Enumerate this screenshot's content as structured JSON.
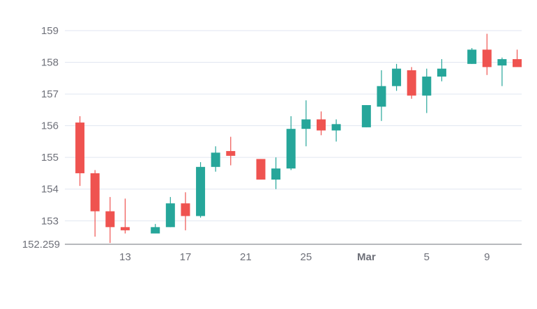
{
  "chart_data": {
    "type": "candlestick",
    "ylim": [
      152.259,
      159
    ],
    "y_ticks": [
      "159",
      "158",
      "157",
      "156",
      "155",
      "154",
      "153"
    ],
    "y_min_label": "152.259",
    "x_ticks": [
      {
        "label": "13",
        "day": 13,
        "bold": false
      },
      {
        "label": "17",
        "day": 17,
        "bold": false
      },
      {
        "label": "21",
        "day": 21,
        "bold": false
      },
      {
        "label": "25",
        "day": 25,
        "bold": false
      },
      {
        "label": "Mar",
        "day": 29,
        "bold": true
      },
      {
        "label": "5",
        "day": 33,
        "bold": false
      },
      {
        "label": "9",
        "day": 37,
        "bold": false
      }
    ],
    "x_range_days": [
      9,
      39.3
    ],
    "grid": true,
    "colors": {
      "up": "#26a69a",
      "down": "#ef5350",
      "grid": "#e0e6f1",
      "axis": "#6e7079"
    },
    "candles": [
      {
        "day": 10,
        "open": 156.1,
        "high": 156.3,
        "low": 154.1,
        "close": 154.5
      },
      {
        "day": 11,
        "open": 154.5,
        "high": 154.6,
        "low": 152.5,
        "close": 153.3
      },
      {
        "day": 12,
        "open": 153.3,
        "high": 153.75,
        "low": 152.3,
        "close": 152.8
      },
      {
        "day": 13,
        "open": 152.8,
        "high": 153.7,
        "low": 152.6,
        "close": 152.7
      },
      {
        "day": 15,
        "open": 152.6,
        "high": 152.9,
        "low": 152.6,
        "close": 152.8
      },
      {
        "day": 16,
        "open": 152.8,
        "high": 153.75,
        "low": 152.8,
        "close": 153.55
      },
      {
        "day": 17,
        "open": 153.55,
        "high": 153.9,
        "low": 152.7,
        "close": 153.15
      },
      {
        "day": 18,
        "open": 153.15,
        "high": 154.85,
        "low": 153.1,
        "close": 154.7
      },
      {
        "day": 19,
        "open": 154.7,
        "high": 155.35,
        "low": 154.55,
        "close": 155.15
      },
      {
        "day": 20,
        "open": 155.2,
        "high": 155.65,
        "low": 154.75,
        "close": 155.05
      },
      {
        "day": 22,
        "open": 154.95,
        "high": 154.95,
        "low": 154.3,
        "close": 154.3
      },
      {
        "day": 23,
        "open": 154.3,
        "high": 155.0,
        "low": 154.0,
        "close": 154.65
      },
      {
        "day": 24,
        "open": 154.65,
        "high": 156.3,
        "low": 154.6,
        "close": 155.9
      },
      {
        "day": 25,
        "open": 155.9,
        "high": 156.8,
        "low": 155.35,
        "close": 156.2
      },
      {
        "day": 26,
        "open": 156.2,
        "high": 156.45,
        "low": 155.7,
        "close": 155.85
      },
      {
        "day": 27,
        "open": 155.85,
        "high": 156.2,
        "low": 155.5,
        "close": 156.05
      },
      {
        "day": 29,
        "open": 155.95,
        "high": 156.65,
        "low": 155.95,
        "close": 156.65
      },
      {
        "day": 30,
        "open": 156.6,
        "high": 157.75,
        "low": 156.15,
        "close": 157.25
      },
      {
        "day": 31,
        "open": 157.25,
        "high": 157.95,
        "low": 157.1,
        "close": 157.8
      },
      {
        "day": 32,
        "open": 157.75,
        "high": 157.85,
        "low": 156.85,
        "close": 156.95
      },
      {
        "day": 33,
        "open": 156.95,
        "high": 157.8,
        "low": 156.4,
        "close": 157.55
      },
      {
        "day": 34,
        "open": 157.55,
        "high": 158.1,
        "low": 157.4,
        "close": 157.8
      },
      {
        "day": 36,
        "open": 157.95,
        "high": 158.45,
        "low": 157.95,
        "close": 158.4
      },
      {
        "day": 37,
        "open": 158.4,
        "high": 158.9,
        "low": 157.6,
        "close": 157.85
      },
      {
        "day": 38,
        "open": 157.9,
        "high": 158.15,
        "low": 157.25,
        "close": 158.1
      },
      {
        "day": 39,
        "open": 158.1,
        "high": 158.4,
        "low": 157.9,
        "close": 157.85
      }
    ]
  }
}
